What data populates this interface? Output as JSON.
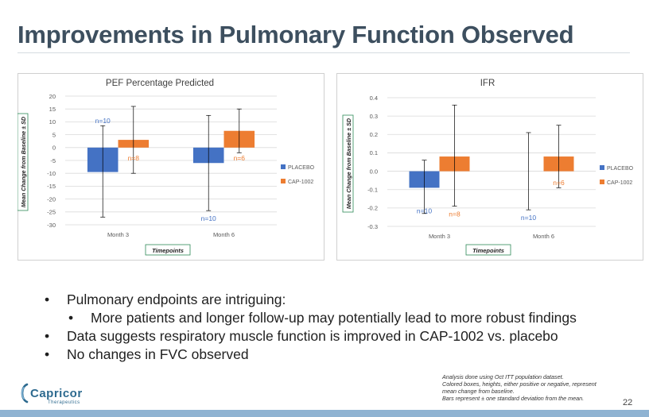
{
  "slide": {
    "title": "Improvements in Pulmonary Function Observed",
    "page_number": "22"
  },
  "bullets": [
    {
      "level": 1,
      "text": "Pulmonary endpoints are intriguing:"
    },
    {
      "level": 2,
      "text": "More patients and longer follow-up may potentially lead to more robust findings"
    },
    {
      "level": 1,
      "text": "Data suggests respiratory muscle function is improved in CAP-1002 vs. placebo"
    },
    {
      "level": 1,
      "text": "No changes in FVC observed"
    }
  ],
  "bullet_glyph": "•",
  "footnote": [
    "Analysis done using Oct ITT population dataset.",
    "Colored boxes, heights, either positive or negative, represent",
    "mean change from baseline.",
    "Bars represent ± one standard deviation from the mean."
  ],
  "logo": {
    "name": "Capricor",
    "tagline": "Therapeutics",
    "icon": "capricor-logo-icon"
  },
  "colors": {
    "title": "#3d4f5f",
    "placebo": "#4472c4",
    "cap": "#ed7d31",
    "footer": "#8fb3d2",
    "axis_label_border": "#2e8b57"
  },
  "chart_data": [
    {
      "type": "bar",
      "title": "PEF Percentage Predicted",
      "categories": [
        "Month 3",
        "Month 6"
      ],
      "ylabel": "Mean Change from Baseline ± SD",
      "xlabel": "Timepoints",
      "ylim": [
        -30,
        20
      ],
      "yticks": [
        "20",
        "15",
        "10",
        "5",
        "0",
        "-5",
        "-10",
        "-15",
        "-20",
        "-25",
        "-30"
      ],
      "ytick_values": [
        20,
        15,
        10,
        5,
        0,
        -5,
        -10,
        -15,
        -20,
        -25,
        -30
      ],
      "grid": true,
      "legend": "right",
      "series": [
        {
          "name": "PLACEBO",
          "values": [
            -9.5,
            -6.0
          ],
          "sd_upper": [
            8.5,
            12.5
          ],
          "sd_lower": [
            -27.0,
            -24.5
          ],
          "n_labels": [
            "n=10",
            "n=10"
          ],
          "n_pos": [
            "above",
            "below"
          ]
        },
        {
          "name": "CAP-1002",
          "values": [
            3.0,
            6.5
          ],
          "sd_upper": [
            16.0,
            15.0
          ],
          "sd_lower": [
            -10.0,
            -2.0
          ],
          "n_labels": [
            "n=8",
            "n=6"
          ],
          "n_pos": [
            "below",
            "below"
          ]
        }
      ]
    },
    {
      "type": "bar",
      "title": "IFR",
      "categories": [
        "Month 3",
        "Month 6"
      ],
      "ylabel": "Mean Change from Baseline ± SD",
      "xlabel": "Timepoints",
      "ylim": [
        -0.3,
        0.4
      ],
      "yticks": [
        "0.4",
        "0.3",
        "0.2",
        "0.1",
        "0.0",
        "-0.1",
        "-0.2",
        "-0.3"
      ],
      "ytick_values": [
        0.4,
        0.3,
        0.2,
        0.1,
        0.0,
        -0.1,
        -0.2,
        -0.3
      ],
      "grid": true,
      "legend": "right",
      "series": [
        {
          "name": "PLACEBO",
          "values": [
            -0.09,
            0.0
          ],
          "sd_upper": [
            0.06,
            0.21
          ],
          "sd_lower": [
            -0.23,
            -0.21
          ],
          "n_labels": [
            "n=10",
            "n=10"
          ],
          "n_pos": [
            "below",
            "below"
          ]
        },
        {
          "name": "CAP-1002",
          "values": [
            0.08,
            0.08
          ],
          "sd_upper": [
            0.36,
            0.25
          ],
          "sd_lower": [
            -0.19,
            -0.09
          ],
          "n_labels": [
            "n=8",
            "n=6"
          ],
          "n_pos": [
            "below",
            "below"
          ]
        }
      ]
    }
  ]
}
